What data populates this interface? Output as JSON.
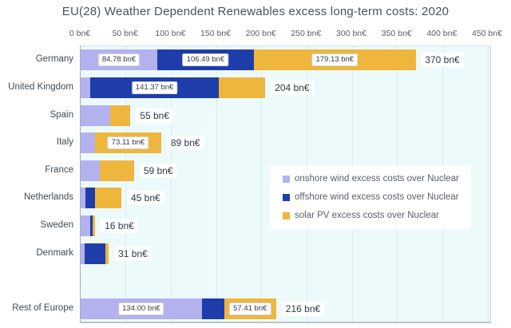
{
  "title": "EU(28) Weather Dependent Renewables excess long-term costs:  2020",
  "colors": {
    "onshore": "#b3b2ee",
    "offshore": "#1e3dab",
    "solar": "#eeb63c",
    "plot_bg": "#edfafc",
    "gridline": "#dcebee"
  },
  "legend": {
    "items": [
      {
        "key": "onshore",
        "label": "onshore wind excess costs over Nuclear"
      },
      {
        "key": "offshore",
        "label": "offshore wind excess costs over Nuclear"
      },
      {
        "key": "solar",
        "label": "solar PV excess costs over Nuclear"
      }
    ]
  },
  "chart_data": {
    "type": "bar",
    "orientation": "horizontal",
    "stacked": true,
    "title": "EU(28) Weather Dependent Renewables excess long-term costs:  2020",
    "unit": "bn€",
    "xlim": [
      0,
      450
    ],
    "x_ticks": [
      "0 bn€",
      "50 bn€",
      "100 bn€",
      "150 bn€",
      "200 bn€",
      "250 bn€",
      "300 bn€",
      "350 bn€",
      "400 bn€",
      "450 bn€"
    ],
    "grid": true,
    "legend_position": "center-right",
    "series_names": [
      "onshore wind excess costs over Nuclear",
      "offshore wind excess costs over Nuclear",
      "solar PV excess costs over Nuclear"
    ],
    "rows": [
      {
        "category": "Germany",
        "row": 0,
        "onshore": 84.78,
        "offshore": 106.49,
        "solar": 179.13,
        "total": 370,
        "total_label": "370 bn€",
        "segment_labels": {
          "onshore": "84.78 bn€",
          "offshore": "106.49 bn€",
          "solar": "179.13 bn€"
        }
      },
      {
        "category": "United Kingdom",
        "row": 1,
        "onshore": 11.0,
        "offshore": 141.37,
        "solar": 51.63,
        "total": 204,
        "total_label": "204 bn€",
        "segment_labels": {
          "offshore": "141.37 bn€"
        }
      },
      {
        "category": "Spain",
        "row": 2,
        "onshore": 33.0,
        "offshore": 0,
        "solar": 22.0,
        "total": 55,
        "total_label": "55 bn€",
        "segment_labels": {}
      },
      {
        "category": "Italy",
        "row": 3,
        "onshore": 15.89,
        "offshore": 0,
        "solar": 73.11,
        "total": 89,
        "total_label": "89 bn€",
        "segment_labels": {
          "solar": "73.11 bn€"
        }
      },
      {
        "category": "France",
        "row": 4,
        "onshore": 21.0,
        "offshore": 0,
        "solar": 38.0,
        "total": 59,
        "total_label": "59 bn€",
        "segment_labels": {}
      },
      {
        "category": "Netherlands",
        "row": 5,
        "onshore": 5.5,
        "offshore": 10.5,
        "solar": 29.0,
        "total": 45,
        "total_label": "45 bn€",
        "segment_labels": {}
      },
      {
        "category": "Sweden",
        "row": 6,
        "onshore": 10.5,
        "offshore": 2.5,
        "solar": 3.0,
        "total": 16,
        "total_label": "16 bn€",
        "segment_labels": {}
      },
      {
        "category": "Denmark",
        "row": 7,
        "onshore": 4.0,
        "offshore": 23.5,
        "solar": 3.5,
        "total": 31,
        "total_label": "31 bn€",
        "segment_labels": {}
      },
      {
        "category": "Rest of Europe",
        "row": 9,
        "onshore": 134.0,
        "offshore": 24.59,
        "solar": 57.41,
        "total": 216,
        "total_label": "216 bn€",
        "segment_labels": {
          "onshore": "134.00 bn€",
          "solar": "57.41 bn€"
        }
      }
    ]
  }
}
